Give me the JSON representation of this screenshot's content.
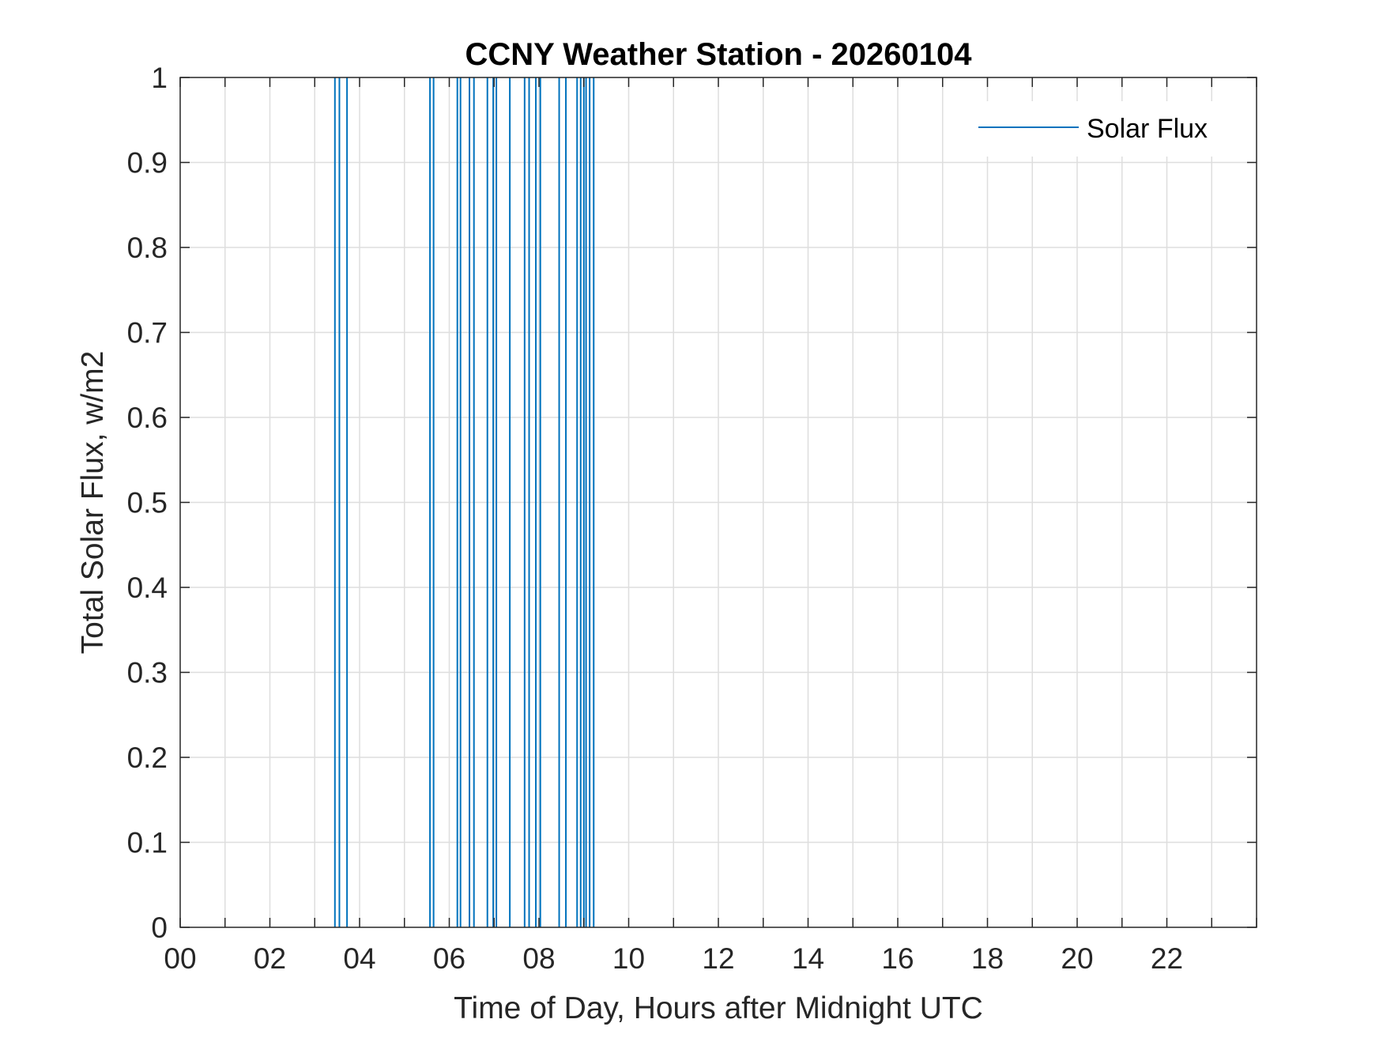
{
  "chart_data": {
    "type": "line",
    "title": "CCNY Weather Station - 20260104",
    "xlabel": "Time of Day, Hours after Midnight UTC",
    "ylabel": "Total Solar Flux, w/m2",
    "xlim": [
      0,
      24
    ],
    "ylim": [
      0,
      1
    ],
    "xtick_labels": [
      "00",
      "02",
      "04",
      "06",
      "08",
      "10",
      "12",
      "14",
      "16",
      "18",
      "20",
      "22"
    ],
    "ytick_labels": [
      "0",
      "0.1",
      "0.2",
      "0.3",
      "0.4",
      "0.5",
      "0.6",
      "0.7",
      "0.8",
      "0.9",
      "1"
    ],
    "grid": true,
    "legend": {
      "position": "top-right",
      "entries": [
        "Solar Flux"
      ]
    },
    "series": [
      {
        "name": "Solar Flux",
        "color": "#0072BD",
        "spikes_x": [
          3.45,
          3.55,
          3.72,
          5.57,
          5.65,
          6.18,
          6.25,
          6.45,
          6.55,
          6.85,
          6.98,
          7.05,
          7.35,
          7.68,
          7.78,
          7.93,
          8.03,
          8.45,
          8.6,
          8.85,
          8.93,
          9.0,
          9.05,
          9.13,
          9.22
        ],
        "baseline": 0,
        "peak": 1
      }
    ]
  }
}
